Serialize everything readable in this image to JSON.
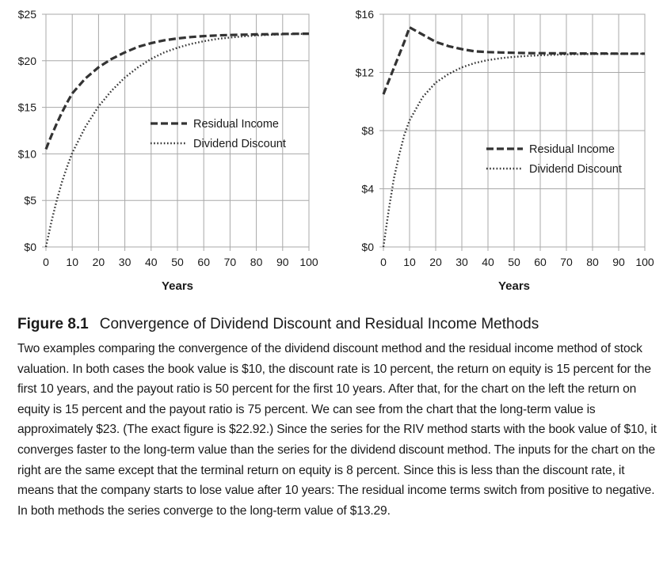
{
  "chart_data": [
    {
      "type": "line",
      "xlabel": "Years",
      "ylabel": "",
      "xlim": [
        0,
        100
      ],
      "ylim": [
        0,
        25
      ],
      "xticks": [
        "0",
        "10",
        "20",
        "30",
        "40",
        "50",
        "60",
        "70",
        "80",
        "90",
        "100"
      ],
      "yticks": [
        "$0",
        "$5",
        "$10",
        "$15",
        "$20",
        "$25"
      ],
      "grid": true,
      "legend": "center-right",
      "x": [
        0,
        2,
        4,
        6,
        8,
        10,
        15,
        20,
        25,
        30,
        35,
        40,
        45,
        50,
        55,
        60,
        65,
        70,
        75,
        80,
        85,
        90,
        95,
        100
      ],
      "series": [
        {
          "name": "Residual Income",
          "style": "dashed",
          "values": [
            10.5,
            11.9,
            13.2,
            14.4,
            15.5,
            16.5,
            18.1,
            19.3,
            20.2,
            20.9,
            21.5,
            21.9,
            22.2,
            22.4,
            22.55,
            22.65,
            22.72,
            22.77,
            22.81,
            22.84,
            22.86,
            22.88,
            22.9,
            22.91
          ]
        },
        {
          "name": "Dividend Discount",
          "style": "dotted",
          "values": [
            0,
            2.6,
            4.9,
            6.9,
            8.6,
            10.1,
            12.9,
            15.1,
            16.8,
            18.2,
            19.3,
            20.2,
            20.9,
            21.4,
            21.8,
            22.1,
            22.35,
            22.5,
            22.63,
            22.72,
            22.79,
            22.84,
            22.88,
            22.9
          ]
        }
      ]
    },
    {
      "type": "line",
      "xlabel": "Years",
      "ylabel": "",
      "xlim": [
        0,
        100
      ],
      "ylim": [
        0,
        16
      ],
      "xticks": [
        "0",
        "10",
        "20",
        "30",
        "40",
        "50",
        "60",
        "70",
        "80",
        "90",
        "100"
      ],
      "yticks": [
        "$0",
        "$4",
        "$8",
        "$12",
        "$16"
      ],
      "grid": true,
      "legend": "center-right",
      "x": [
        0,
        2,
        4,
        6,
        8,
        10,
        15,
        20,
        25,
        30,
        35,
        40,
        45,
        50,
        55,
        60,
        65,
        70,
        75,
        80,
        85,
        90,
        95,
        100
      ],
      "series": [
        {
          "name": "Residual Income",
          "style": "dashed",
          "values": [
            10.5,
            11.4,
            12.3,
            13.2,
            14.1,
            15.1,
            14.6,
            14.1,
            13.8,
            13.6,
            13.45,
            13.4,
            13.37,
            13.35,
            13.33,
            13.32,
            13.31,
            13.31,
            13.3,
            13.3,
            13.3,
            13.29,
            13.29,
            13.29
          ]
        },
        {
          "name": "Dividend Discount",
          "style": "dotted",
          "values": [
            0,
            2.5,
            4.7,
            6.3,
            7.7,
            8.7,
            10.3,
            11.3,
            11.9,
            12.35,
            12.65,
            12.85,
            12.98,
            13.07,
            13.13,
            13.18,
            13.21,
            13.24,
            13.25,
            13.26,
            13.27,
            13.28,
            13.28,
            13.29
          ]
        }
      ]
    }
  ],
  "caption": {
    "label": "Figure 8.1",
    "heading": "Convergence of Dividend Discount and Residual Income Methods",
    "body": "Two examples comparing the convergence of the dividend discount method and the residual income method of stock valuation. In both cases the book value is $10, the discount rate is 10 percent, the return on equity is 15 percent for the first 10 years, and the payout ratio is 50 percent for the first 10 years. After that, for the chart on the left the return on equity is 15 percent and the payout ratio is 75 percent. We can see from the chart that the long-term value is approximately $23. (The exact figure is $22.92.) Since the series for the RIV method starts with the book value of $10, it converges faster to the long-term value than the series for the dividend discount method. The inputs for the chart on the right are the same except that the terminal return on equity is 8 percent. Since this is less than the discount rate, it means that the company starts to lose value after 10 years: The residual income terms switch from positive to negative. In both methods the series converge to the long-term value of $13.29."
  }
}
